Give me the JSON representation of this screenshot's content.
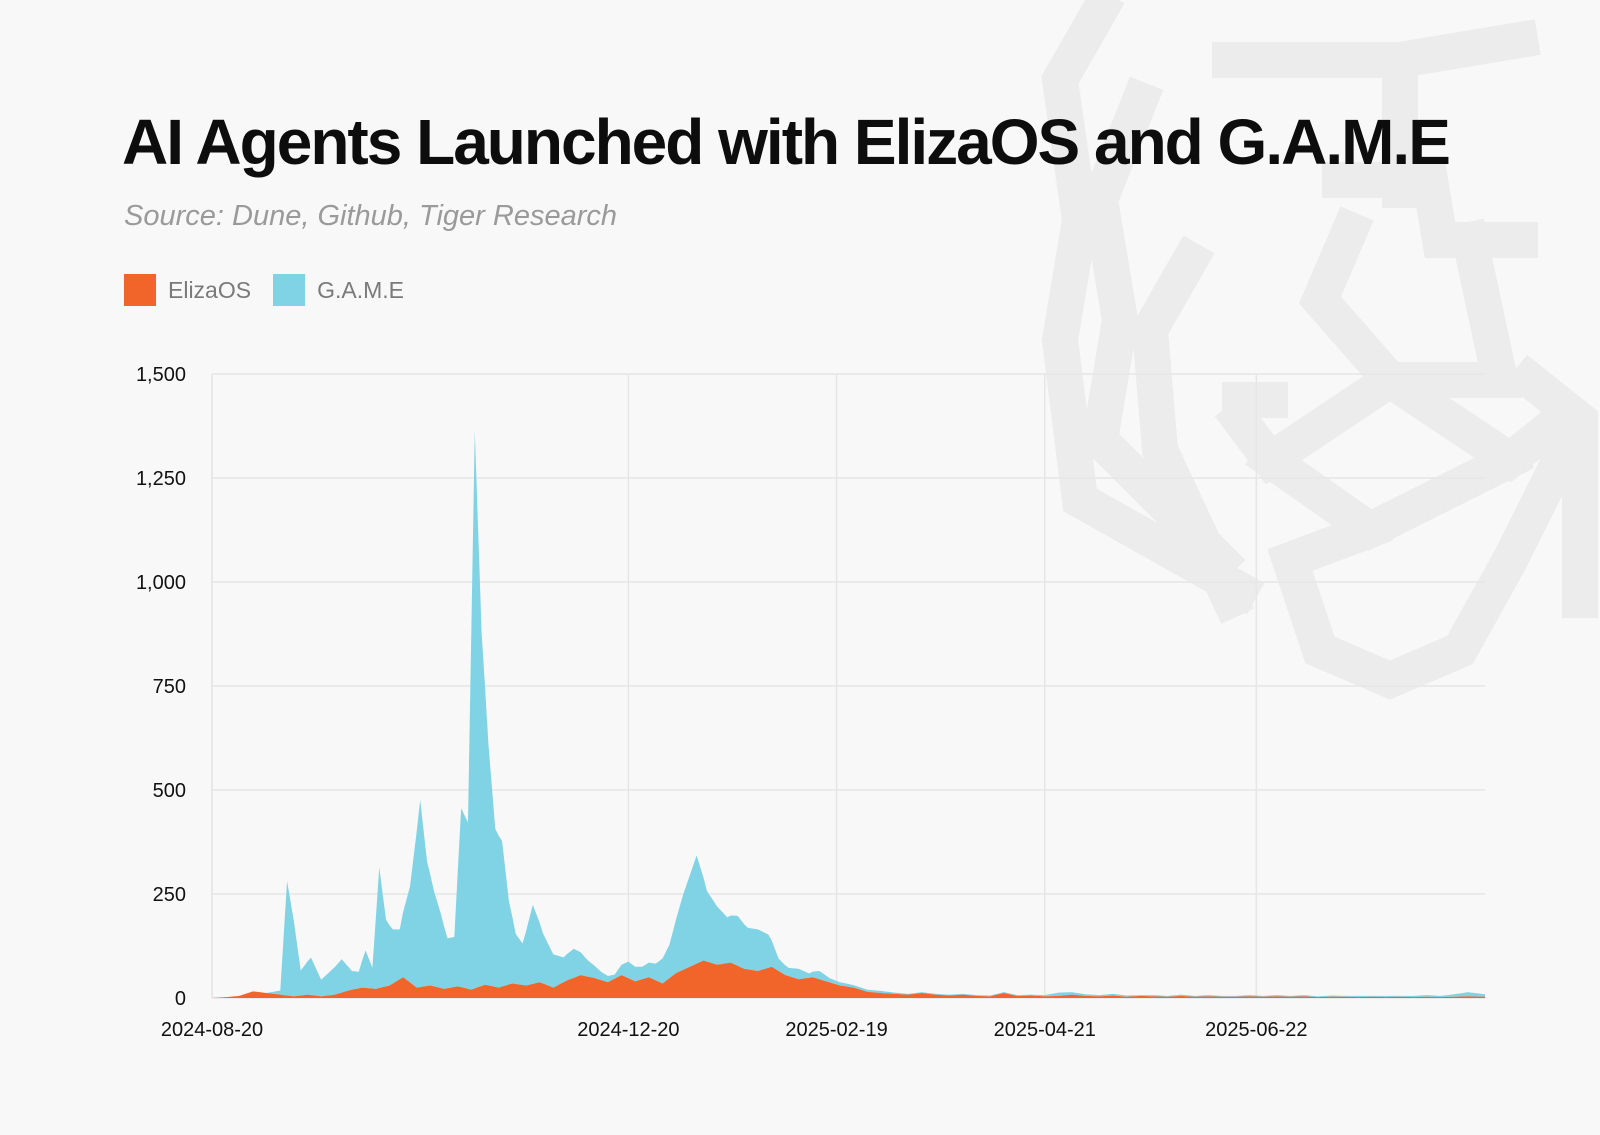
{
  "title": "AI Agents Launched with ElizaOS and G.A.M.E",
  "subtitle": "Source: Dune, Github, Tiger Research",
  "colors": {
    "elizaos": "#f2652a",
    "game": "#80d3e5",
    "grid": "#e6e6e6",
    "watermark": "#ececec"
  },
  "watermark_icon": "tiger-logo-icon",
  "chart_data": {
    "type": "area",
    "stacked": true,
    "title": "AI Agents Launched with ElizaOS and G.A.M.E",
    "subtitle": "Source: Dune, Github, Tiger Research",
    "xlabel": "",
    "ylabel": "",
    "x_range": [
      "2024-08-20",
      "2025-08-28"
    ],
    "ylim": [
      0,
      1500
    ],
    "y_ticks": [
      0,
      250,
      500,
      750,
      1000,
      1250,
      1500
    ],
    "y_tick_labels": [
      "0",
      "250",
      "500",
      "750",
      "1,000",
      "1,250",
      "1,500"
    ],
    "x_ticks": [
      "2024-08-20",
      "2024-12-20",
      "2025-02-19",
      "2025-04-21",
      "2025-06-22"
    ],
    "grid": true,
    "legend_position": "top-left",
    "series": [
      {
        "name": "ElizaOS",
        "color": "#f2652a",
        "points": [
          [
            "2024-08-20",
            0
          ],
          [
            "2024-08-24",
            2
          ],
          [
            "2024-08-28",
            5
          ],
          [
            "2024-09-01",
            16
          ],
          [
            "2024-09-05",
            12
          ],
          [
            "2024-09-09",
            8
          ],
          [
            "2024-09-13",
            4
          ],
          [
            "2024-09-17",
            8
          ],
          [
            "2024-09-21",
            4
          ],
          [
            "2024-09-25",
            8
          ],
          [
            "2024-09-29",
            18
          ],
          [
            "2024-10-03",
            25
          ],
          [
            "2024-10-07",
            22
          ],
          [
            "2024-10-11",
            30
          ],
          [
            "2024-10-15",
            50
          ],
          [
            "2024-10-19",
            25
          ],
          [
            "2024-10-23",
            30
          ],
          [
            "2024-10-27",
            22
          ],
          [
            "2024-10-31",
            28
          ],
          [
            "2024-11-04",
            20
          ],
          [
            "2024-11-08",
            32
          ],
          [
            "2024-11-12",
            25
          ],
          [
            "2024-11-16",
            35
          ],
          [
            "2024-11-20",
            30
          ],
          [
            "2024-11-24",
            38
          ],
          [
            "2024-11-28",
            25
          ],
          [
            "2024-12-02",
            42
          ],
          [
            "2024-12-06",
            55
          ],
          [
            "2024-12-10",
            48
          ],
          [
            "2024-12-14",
            38
          ],
          [
            "2024-12-18",
            55
          ],
          [
            "2024-12-22",
            40
          ],
          [
            "2024-12-26",
            50
          ],
          [
            "2024-12-30",
            35
          ],
          [
            "2025-01-03",
            60
          ],
          [
            "2025-01-07",
            75
          ],
          [
            "2025-01-11",
            90
          ],
          [
            "2025-01-15",
            80
          ],
          [
            "2025-01-19",
            85
          ],
          [
            "2025-01-23",
            70
          ],
          [
            "2025-01-27",
            65
          ],
          [
            "2025-01-31",
            75
          ],
          [
            "2025-02-04",
            55
          ],
          [
            "2025-02-08",
            45
          ],
          [
            "2025-02-12",
            50
          ],
          [
            "2025-02-16",
            40
          ],
          [
            "2025-02-20",
            30
          ],
          [
            "2025-02-24",
            25
          ],
          [
            "2025-02-28",
            15
          ],
          [
            "2025-03-04",
            12
          ],
          [
            "2025-03-08",
            10
          ],
          [
            "2025-03-12",
            8
          ],
          [
            "2025-03-16",
            12
          ],
          [
            "2025-03-20",
            8
          ],
          [
            "2025-03-24",
            6
          ],
          [
            "2025-03-28",
            8
          ],
          [
            "2025-04-01",
            5
          ],
          [
            "2025-04-05",
            4
          ],
          [
            "2025-04-09",
            12
          ],
          [
            "2025-04-13",
            5
          ],
          [
            "2025-04-17",
            6
          ],
          [
            "2025-04-21",
            4
          ],
          [
            "2025-04-25",
            5
          ],
          [
            "2025-04-29",
            8
          ],
          [
            "2025-05-03",
            5
          ],
          [
            "2025-05-07",
            4
          ],
          [
            "2025-05-11",
            6
          ],
          [
            "2025-05-15",
            3
          ],
          [
            "2025-05-19",
            5
          ],
          [
            "2025-05-23",
            4
          ],
          [
            "2025-05-27",
            3
          ],
          [
            "2025-05-31",
            5
          ],
          [
            "2025-06-04",
            3
          ],
          [
            "2025-06-08",
            4
          ],
          [
            "2025-06-12",
            3
          ],
          [
            "2025-06-16",
            3
          ],
          [
            "2025-06-20",
            4
          ],
          [
            "2025-06-24",
            3
          ],
          [
            "2025-06-28",
            4
          ],
          [
            "2025-07-02",
            3
          ],
          [
            "2025-07-06",
            4
          ],
          [
            "2025-07-10",
            2
          ],
          [
            "2025-07-14",
            3
          ],
          [
            "2025-07-18",
            3
          ],
          [
            "2025-07-22",
            2
          ],
          [
            "2025-07-26",
            3
          ],
          [
            "2025-07-30",
            2
          ],
          [
            "2025-08-03",
            3
          ],
          [
            "2025-08-07",
            2
          ],
          [
            "2025-08-11",
            3
          ],
          [
            "2025-08-15",
            2
          ],
          [
            "2025-08-19",
            3
          ],
          [
            "2025-08-23",
            4
          ],
          [
            "2025-08-28",
            3
          ]
        ]
      },
      {
        "name": "G.A.M.E",
        "color": "#80d3e5",
        "points": [
          [
            "2024-08-20",
            0
          ],
          [
            "2024-08-24",
            0
          ],
          [
            "2024-08-28",
            0
          ],
          [
            "2024-09-01",
            0
          ],
          [
            "2024-09-05",
            0
          ],
          [
            "2024-09-09",
            10
          ],
          [
            "2024-09-11",
            275
          ],
          [
            "2024-09-13",
            180
          ],
          [
            "2024-09-15",
            60
          ],
          [
            "2024-09-18",
            90
          ],
          [
            "2024-09-21",
            40
          ],
          [
            "2024-09-24",
            60
          ],
          [
            "2024-09-27",
            80
          ],
          [
            "2024-09-30",
            45
          ],
          [
            "2024-10-02",
            40
          ],
          [
            "2024-10-04",
            90
          ],
          [
            "2024-10-06",
            50
          ],
          [
            "2024-10-08",
            290
          ],
          [
            "2024-10-10",
            160
          ],
          [
            "2024-10-12",
            130
          ],
          [
            "2024-10-14",
            120
          ],
          [
            "2024-10-17",
            230
          ],
          [
            "2024-10-20",
            450
          ],
          [
            "2024-10-22",
            300
          ],
          [
            "2024-10-24",
            230
          ],
          [
            "2024-10-26",
            180
          ],
          [
            "2024-10-28",
            120
          ],
          [
            "2024-10-30",
            120
          ],
          [
            "2024-11-01",
            430
          ],
          [
            "2024-11-03",
            400
          ],
          [
            "2024-11-05",
            1340
          ],
          [
            "2024-11-07",
            850
          ],
          [
            "2024-11-09",
            580
          ],
          [
            "2024-11-11",
            380
          ],
          [
            "2024-11-13",
            350
          ],
          [
            "2024-11-15",
            200
          ],
          [
            "2024-11-17",
            120
          ],
          [
            "2024-11-19",
            100
          ],
          [
            "2024-11-22",
            190
          ],
          [
            "2024-11-25",
            120
          ],
          [
            "2024-11-28",
            80
          ],
          [
            "2024-12-01",
            60
          ],
          [
            "2024-12-04",
            70
          ],
          [
            "2024-12-08",
            40
          ],
          [
            "2024-12-12",
            20
          ],
          [
            "2024-12-16",
            10
          ],
          [
            "2024-12-20",
            40
          ],
          [
            "2024-12-24",
            30
          ],
          [
            "2024-12-28",
            40
          ],
          [
            "2025-01-01",
            80
          ],
          [
            "2025-01-05",
            180
          ],
          [
            "2025-01-09",
            260
          ],
          [
            "2025-01-12",
            170
          ],
          [
            "2025-01-15",
            140
          ],
          [
            "2025-01-18",
            110
          ],
          [
            "2025-01-21",
            120
          ],
          [
            "2025-01-24",
            100
          ],
          [
            "2025-01-27",
            100
          ],
          [
            "2025-01-30",
            80
          ],
          [
            "2025-02-02",
            30
          ],
          [
            "2025-02-05",
            20
          ],
          [
            "2025-02-08",
            25
          ],
          [
            "2025-02-11",
            10
          ],
          [
            "2025-02-14",
            20
          ],
          [
            "2025-02-17",
            10
          ],
          [
            "2025-02-20",
            8
          ],
          [
            "2025-02-24",
            6
          ],
          [
            "2025-02-28",
            5
          ],
          [
            "2025-03-04",
            5
          ],
          [
            "2025-03-08",
            3
          ],
          [
            "2025-03-12",
            2
          ],
          [
            "2025-03-16",
            2
          ],
          [
            "2025-03-20",
            2
          ],
          [
            "2025-03-24",
            2
          ],
          [
            "2025-03-28",
            2
          ],
          [
            "2025-04-01",
            2
          ],
          [
            "2025-04-05",
            2
          ],
          [
            "2025-04-09",
            2
          ],
          [
            "2025-04-13",
            2
          ],
          [
            "2025-04-17",
            2
          ],
          [
            "2025-04-21",
            3
          ],
          [
            "2025-04-25",
            8
          ],
          [
            "2025-04-29",
            6
          ],
          [
            "2025-05-03",
            4
          ],
          [
            "2025-05-07",
            3
          ],
          [
            "2025-05-11",
            4
          ],
          [
            "2025-05-15",
            3
          ],
          [
            "2025-05-19",
            2
          ],
          [
            "2025-05-23",
            3
          ],
          [
            "2025-05-27",
            2
          ],
          [
            "2025-05-31",
            3
          ],
          [
            "2025-06-04",
            2
          ],
          [
            "2025-06-08",
            3
          ],
          [
            "2025-06-12",
            2
          ],
          [
            "2025-06-16",
            2
          ],
          [
            "2025-06-20",
            3
          ],
          [
            "2025-06-24",
            2
          ],
          [
            "2025-06-28",
            3
          ],
          [
            "2025-07-02",
            2
          ],
          [
            "2025-07-06",
            3
          ],
          [
            "2025-07-10",
            2
          ],
          [
            "2025-07-14",
            3
          ],
          [
            "2025-07-18",
            2
          ],
          [
            "2025-07-22",
            3
          ],
          [
            "2025-07-26",
            2
          ],
          [
            "2025-07-30",
            3
          ],
          [
            "2025-08-03",
            2
          ],
          [
            "2025-08-07",
            3
          ],
          [
            "2025-08-11",
            4
          ],
          [
            "2025-08-15",
            3
          ],
          [
            "2025-08-19",
            6
          ],
          [
            "2025-08-23",
            10
          ],
          [
            "2025-08-28",
            6
          ]
        ]
      }
    ]
  }
}
